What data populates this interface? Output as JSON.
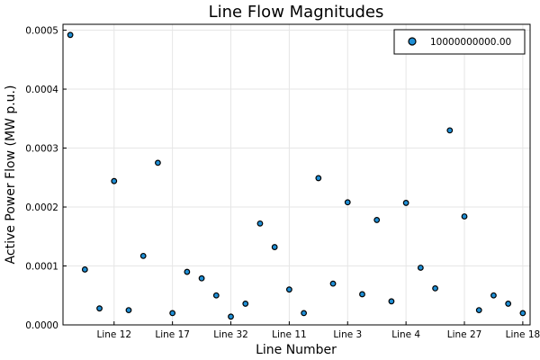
{
  "chart_data": {
    "type": "scatter",
    "title": "Line Flow Magnitudes",
    "xlabel": "Line Number",
    "ylabel": "Active Power Flow (MW p.u.)",
    "ylim": [
      0,
      0.00051
    ],
    "y_ticks": [
      0.0,
      0.0001,
      0.0002,
      0.0003,
      0.0004,
      0.0005
    ],
    "y_tick_labels": [
      "0.0000",
      "0.0001",
      "0.0002",
      "0.0003",
      "0.0004",
      "0.0005"
    ],
    "grid": true,
    "legend_position": "top-right",
    "series": [
      {
        "name": "10000000000.00",
        "color": "#1f8fd6",
        "values": [
          0.000492,
          9.4e-05,
          2.8e-05,
          0.000244,
          2.5e-05,
          0.000117,
          0.000275,
          2e-05,
          9e-05,
          7.9e-05,
          5e-05,
          1.4e-05,
          3.6e-05,
          0.000172,
          0.000132,
          6e-05,
          2e-05,
          0.000249,
          7e-05,
          0.000208,
          5.2e-05,
          0.000178,
          4e-05,
          0.000207,
          9.7e-05,
          6.2e-05,
          0.00033,
          0.000184,
          2.5e-05,
          5e-05,
          3.6e-05,
          2e-05
        ]
      }
    ],
    "x_tick_labels": [
      {
        "index": 4,
        "label": "Line 12"
      },
      {
        "index": 8,
        "label": "Line 17"
      },
      {
        "index": 12,
        "label": "Line 32"
      },
      {
        "index": 16,
        "label": "Line 11"
      },
      {
        "index": 20,
        "label": "Line 3"
      },
      {
        "index": 24,
        "label": "Line 4"
      },
      {
        "index": 28,
        "label": "Line 27"
      },
      {
        "index": 32,
        "label": "Line 18"
      }
    ]
  }
}
